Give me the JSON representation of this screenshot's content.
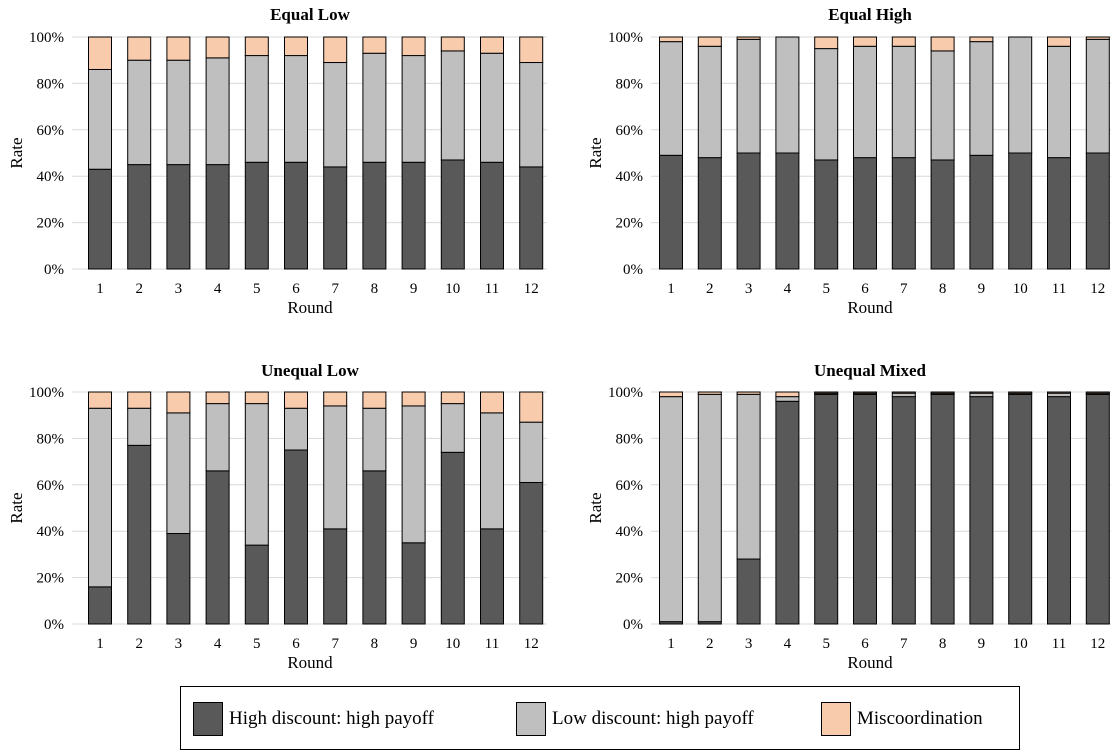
{
  "chart_data": [
    {
      "type": "bar",
      "stacked": true,
      "title": "Equal Low",
      "xlabel": "Round",
      "ylabel": "Rate",
      "categories": [
        "1",
        "2",
        "3",
        "4",
        "5",
        "6",
        "7",
        "8",
        "9",
        "10",
        "11",
        "12"
      ],
      "ylim": [
        0,
        100
      ],
      "yticks": [
        "0%",
        "20%",
        "40%",
        "60%",
        "80%",
        "100%"
      ],
      "grid": true,
      "series": [
        {
          "name": "High discount: high payoff",
          "values": [
            43,
            45,
            45,
            45,
            46,
            46,
            44,
            46,
            46,
            47,
            46,
            44
          ]
        },
        {
          "name": "Low discount: high payoff",
          "values": [
            43,
            45,
            45,
            46,
            46,
            46,
            45,
            47,
            46,
            47,
            47,
            45
          ]
        },
        {
          "name": "Miscoordination",
          "values": [
            14,
            10,
            10,
            9,
            8,
            8,
            11,
            7,
            8,
            6,
            7,
            11
          ]
        }
      ]
    },
    {
      "type": "bar",
      "stacked": true,
      "title": "Equal High",
      "xlabel": "Round",
      "ylabel": "Rate",
      "categories": [
        "1",
        "2",
        "3",
        "4",
        "5",
        "6",
        "7",
        "8",
        "9",
        "10",
        "11",
        "12"
      ],
      "ylim": [
        0,
        100
      ],
      "yticks": [
        "0%",
        "20%",
        "40%",
        "60%",
        "80%",
        "100%"
      ],
      "grid": true,
      "series": [
        {
          "name": "High discount: high payoff",
          "values": [
            49,
            48,
            50,
            50,
            47,
            48,
            48,
            47,
            49,
            50,
            48,
            50
          ]
        },
        {
          "name": "Low discount: high payoff",
          "values": [
            49,
            48,
            49,
            50,
            48,
            48,
            48,
            47,
            49,
            50,
            48,
            49
          ]
        },
        {
          "name": "Miscoordination",
          "values": [
            2,
            4,
            1,
            0,
            5,
            4,
            4,
            6,
            2,
            0,
            4,
            1
          ]
        }
      ]
    },
    {
      "type": "bar",
      "stacked": true,
      "title": "Unequal Low",
      "xlabel": "Round",
      "ylabel": "Rate",
      "categories": [
        "1",
        "2",
        "3",
        "4",
        "5",
        "6",
        "7",
        "8",
        "9",
        "10",
        "11",
        "12"
      ],
      "ylim": [
        0,
        100
      ],
      "yticks": [
        "0%",
        "20%",
        "40%",
        "60%",
        "80%",
        "100%"
      ],
      "grid": true,
      "series": [
        {
          "name": "High discount: high payoff",
          "values": [
            16,
            77,
            39,
            66,
            34,
            75,
            41,
            66,
            35,
            74,
            41,
            61
          ]
        },
        {
          "name": "Low discount: high payoff",
          "values": [
            77,
            16,
            52,
            29,
            61,
            18,
            53,
            27,
            59,
            21,
            50,
            26
          ]
        },
        {
          "name": "Miscoordination",
          "values": [
            7,
            7,
            9,
            5,
            5,
            7,
            6,
            7,
            6,
            5,
            9,
            13
          ]
        }
      ]
    },
    {
      "type": "bar",
      "stacked": true,
      "title": "Unequal Mixed",
      "xlabel": "Round",
      "ylabel": "Rate",
      "categories": [
        "1",
        "2",
        "3",
        "4",
        "5",
        "6",
        "7",
        "8",
        "9",
        "10",
        "11",
        "12"
      ],
      "ylim": [
        0,
        100
      ],
      "yticks": [
        "0%",
        "20%",
        "40%",
        "60%",
        "80%",
        "100%"
      ],
      "grid": true,
      "series": [
        {
          "name": "High discount: high payoff",
          "values": [
            1,
            1,
            28,
            96,
            99,
            99,
            98,
            99,
            98,
            99,
            98,
            99
          ]
        },
        {
          "name": "Low discount: high payoff",
          "values": [
            97,
            98,
            71,
            2,
            0.5,
            0.5,
            1.5,
            0.5,
            1.5,
            0.5,
            1.5,
            0.5
          ]
        },
        {
          "name": "Miscoordination",
          "values": [
            2,
            1,
            1,
            2,
            0.5,
            0.5,
            0.5,
            0.5,
            0.5,
            0.5,
            0.5,
            0.5
          ]
        }
      ]
    }
  ],
  "legend": {
    "position": "bottom",
    "items": [
      {
        "label": "High discount: high payoff",
        "color": "#595959"
      },
      {
        "label": "Low discount: high payoff",
        "color": "#bfbfbf"
      },
      {
        "label": "Miscoordination",
        "color": "#f8cbad"
      }
    ]
  },
  "colors": {
    "series": [
      "#595959",
      "#bfbfbf",
      "#f8cbad"
    ],
    "grid": "#d9d9d9",
    "bar_outline": "#000000"
  }
}
